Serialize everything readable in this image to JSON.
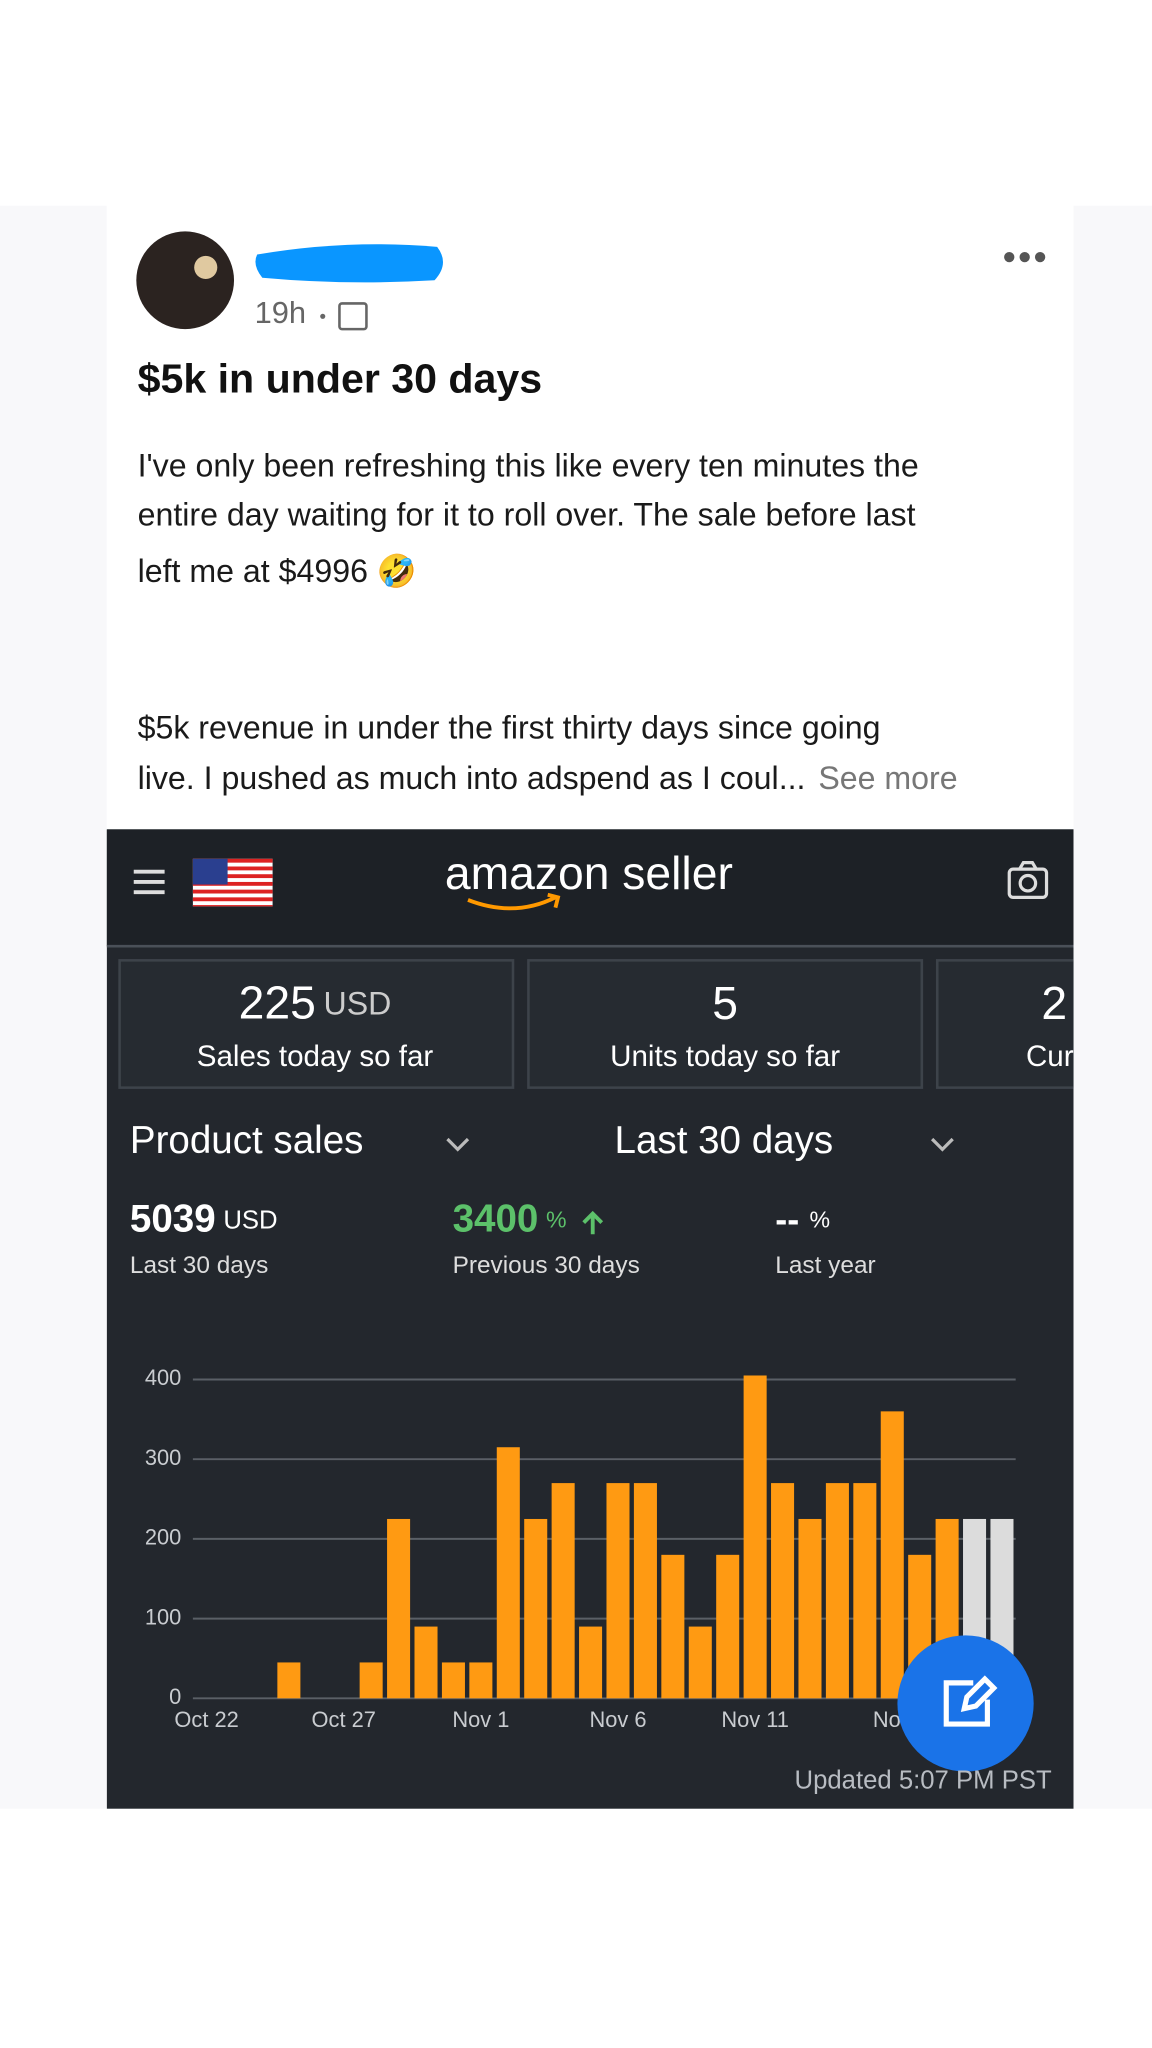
{
  "post": {
    "time": "19h",
    "title": "$5k in under 30 days",
    "body": [
      "I've only been refreshing this like every ten minutes the",
      "entire day waiting for it to roll over. The sale before last",
      "left me at $4996 🤣",
      "$5k revenue in under the first thirty days since going",
      "live. I pushed as much into adspend as I coul..."
    ],
    "see_more": "See more"
  },
  "app": {
    "logo": "amazon seller",
    "cards": [
      {
        "value": "225",
        "unit": "USD",
        "label": "Sales today so far"
      },
      {
        "value": "5",
        "label": "Units today so far"
      },
      {
        "value": "2",
        "label": "Cur"
      }
    ],
    "metric": "Product sales",
    "range": "Last 30 days",
    "stats": [
      {
        "value": "5039",
        "unit": "USD",
        "label": "Last 30 days"
      },
      {
        "value": "3400",
        "unit": "%",
        "label": "Previous 30 days"
      },
      {
        "value": "--",
        "unit": "%",
        "label": "Last year"
      }
    ],
    "updated": "Updated 5:07 PM PST"
  },
  "chart_data": {
    "type": "bar",
    "categories": [
      "Oct 22",
      null,
      null,
      null,
      null,
      "Oct 27",
      null,
      null,
      null,
      null,
      "Nov 1",
      null,
      null,
      null,
      null,
      "Nov 6",
      null,
      null,
      null,
      null,
      "Nov 11",
      null,
      null,
      null,
      null,
      "Nov",
      null,
      null,
      null,
      null
    ],
    "values": [
      0,
      0,
      0,
      45,
      0,
      0,
      45,
      225,
      90,
      45,
      45,
      315,
      225,
      270,
      90,
      270,
      270,
      180,
      90,
      180,
      405,
      270,
      225,
      270,
      270,
      360,
      180,
      225,
      225,
      225
    ],
    "colors": [
      "#ff9a12",
      "#ff9a12",
      "#ff9a12",
      "#ff9a12",
      "#ff9a12",
      "#ff9a12",
      "#ff9a12",
      "#ff9a12",
      "#ff9a12",
      "#ff9a12",
      "#ff9a12",
      "#ff9a12",
      "#ff9a12",
      "#ff9a12",
      "#ff9a12",
      "#ff9a12",
      "#ff9a12",
      "#ff9a12",
      "#ff9a12",
      "#ff9a12",
      "#ff9a12",
      "#ff9a12",
      "#ff9a12",
      "#ff9a12",
      "#ff9a12",
      "#ff9a12",
      "#ff9a12",
      "#ff9a12",
      "#dcdcdc",
      "#dcdcdc"
    ],
    "ylim": [
      0,
      400
    ],
    "yticks": [
      0,
      100,
      200,
      300,
      400
    ],
    "grid": true
  }
}
